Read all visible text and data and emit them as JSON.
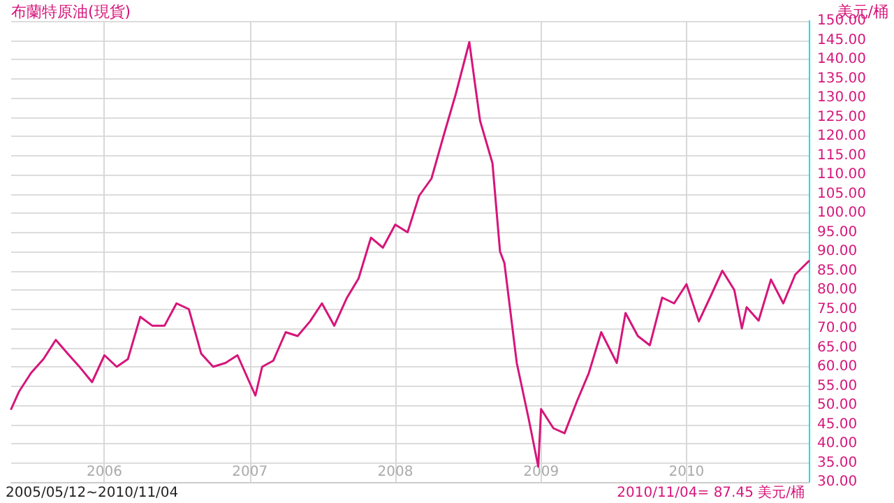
{
  "chart_data": {
    "type": "line",
    "title": "布蘭特原油(現貨)",
    "ylabel": "美元/桶",
    "annotations": [
      "2005/05/12~2010/11/04",
      "2010/11/04= 87.45 美元/桶"
    ],
    "x": [
      "2005-05-12",
      "2005-06-01",
      "2005-07-01",
      "2005-08-01",
      "2005-09-01",
      "2005-10-01",
      "2005-11-01",
      "2005-12-01",
      "2006-01-01",
      "2006-02-01",
      "2006-03-01",
      "2006-04-01",
      "2006-05-01",
      "2006-06-01",
      "2006-07-01",
      "2006-08-01",
      "2006-09-01",
      "2006-10-01",
      "2006-11-01",
      "2006-12-01",
      "2007-01-15",
      "2007-02-01",
      "2007-03-01",
      "2007-04-01",
      "2007-05-01",
      "2007-06-01",
      "2007-07-01",
      "2007-08-01",
      "2007-09-01",
      "2007-10-01",
      "2007-11-01",
      "2007-12-01",
      "2008-01-01",
      "2008-02-01",
      "2008-03-01",
      "2008-04-01",
      "2008-05-01",
      "2008-06-01",
      "2008-07-05",
      "2008-07-20",
      "2008-08-01",
      "2008-09-01",
      "2008-09-20",
      "2008-10-01",
      "2008-11-01",
      "2008-12-01",
      "2008-12-25",
      "2009-01-01",
      "2009-02-01",
      "2009-03-01",
      "2009-04-01",
      "2009-05-01",
      "2009-06-01",
      "2009-07-10",
      "2009-08-01",
      "2009-09-01",
      "2009-10-01",
      "2009-11-01",
      "2009-12-01",
      "2010-01-01",
      "2010-02-01",
      "2010-03-01",
      "2010-04-01",
      "2010-05-01",
      "2010-05-20",
      "2010-06-01",
      "2010-07-01",
      "2010-08-01",
      "2010-09-01",
      "2010-10-01",
      "2010-11-04"
    ],
    "series": [
      {
        "color": "#d6157a",
        "values": [
          49,
          53.6,
          58.4,
          62,
          67,
          63.4,
          59.8,
          56,
          63,
          60,
          62,
          73,
          70.7,
          70.7,
          76.5,
          75,
          63.4,
          60,
          61,
          63,
          52.5,
          60,
          61.6,
          69,
          68,
          71.8,
          76.5,
          70.7,
          77.8,
          83,
          93.6,
          91,
          97,
          95,
          104.5,
          109,
          120,
          131,
          144.5,
          133,
          124,
          113,
          90,
          87,
          61,
          46.4,
          34,
          49,
          44,
          42.7,
          51,
          58.4,
          69,
          61,
          74,
          68,
          65.6,
          78,
          76.5,
          81.5,
          71.8,
          78,
          85,
          80,
          70,
          75.5,
          72,
          82.7,
          76.5,
          84,
          87.5
        ]
      }
    ],
    "xlim": [
      "2005-05-12",
      "2010-11-04"
    ],
    "xticks": [
      {
        "value": "2006-01-01",
        "label": "2006"
      },
      {
        "value": "2007-01-01",
        "label": "2007"
      },
      {
        "value": "2008-01-01",
        "label": "2008"
      },
      {
        "value": "2009-01-01",
        "label": "2009"
      },
      {
        "value": "2010-01-01",
        "label": "2010"
      }
    ],
    "ylim": [
      30,
      150
    ],
    "yticks": [
      {
        "value": 30,
        "label": "30.00"
      },
      {
        "value": 35,
        "label": "35.00"
      },
      {
        "value": 40,
        "label": "40.00"
      },
      {
        "value": 45,
        "label": "45.00"
      },
      {
        "value": 50,
        "label": "50.00"
      },
      {
        "value": 55,
        "label": "55.00"
      },
      {
        "value": 60,
        "label": "60.00"
      },
      {
        "value": 65,
        "label": "65.00"
      },
      {
        "value": 70,
        "label": "70.00"
      },
      {
        "value": 75,
        "label": "75.00"
      },
      {
        "value": 80,
        "label": "80.00"
      },
      {
        "value": 85,
        "label": "85.00"
      },
      {
        "value": 90,
        "label": "90.00"
      },
      {
        "value": 95,
        "label": "95.00"
      },
      {
        "value": 100,
        "label": "100.00"
      },
      {
        "value": 105,
        "label": "105.00"
      },
      {
        "value": 110,
        "label": "110.00"
      },
      {
        "value": 115,
        "label": "115.00"
      },
      {
        "value": 120,
        "label": "120.00"
      },
      {
        "value": 125,
        "label": "125.00"
      },
      {
        "value": 130,
        "label": "130.00"
      },
      {
        "value": 135,
        "label": "135.00"
      },
      {
        "value": 140,
        "label": "140.00"
      },
      {
        "value": 145,
        "label": "145.00"
      },
      {
        "value": 150,
        "label": "150.00"
      }
    ],
    "grid": true,
    "marker": "none",
    "line_style": "solid"
  }
}
